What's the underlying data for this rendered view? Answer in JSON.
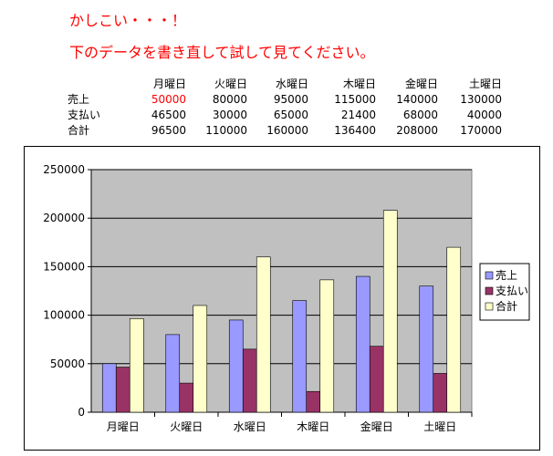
{
  "header": {
    "line1": "かしこい・・・！",
    "line2": "下のデータを書き直して試して見てください。"
  },
  "table": {
    "columns": [
      "月曜日",
      "火曜日",
      "水曜日",
      "木曜日",
      "金曜日",
      "土曜日"
    ],
    "rows": [
      {
        "label": "売上",
        "values": [
          "50000",
          "80000",
          "95000",
          "115000",
          "140000",
          "130000"
        ]
      },
      {
        "label": "支払い",
        "values": [
          "46500",
          "30000",
          "65000",
          "21400",
          "68000",
          "40000"
        ]
      },
      {
        "label": "合計",
        "values": [
          "96500",
          "110000",
          "160000",
          "136400",
          "208000",
          "170000"
        ]
      }
    ],
    "highlight_color": "#ff0000"
  },
  "chart_data": {
    "type": "bar",
    "categories": [
      "月曜日",
      "火曜日",
      "水曜日",
      "木曜日",
      "金曜日",
      "土曜日"
    ],
    "series": [
      {
        "name": "売上",
        "values": [
          50000,
          80000,
          95000,
          115000,
          140000,
          130000
        ],
        "color": "#9999ff"
      },
      {
        "name": "支払い",
        "values": [
          46500,
          30000,
          65000,
          21400,
          68000,
          40000
        ],
        "color": "#993366"
      },
      {
        "name": "合計",
        "values": [
          96500,
          110000,
          160000,
          136400,
          208000,
          170000
        ],
        "color": "#ffffcc"
      }
    ],
    "ylim": [
      0,
      250000
    ],
    "yticks": [
      "0",
      "50000",
      "100000",
      "150000",
      "200000",
      "250000"
    ],
    "grid": true,
    "plot_background": "#c0c0c0",
    "legend_position": "right"
  }
}
